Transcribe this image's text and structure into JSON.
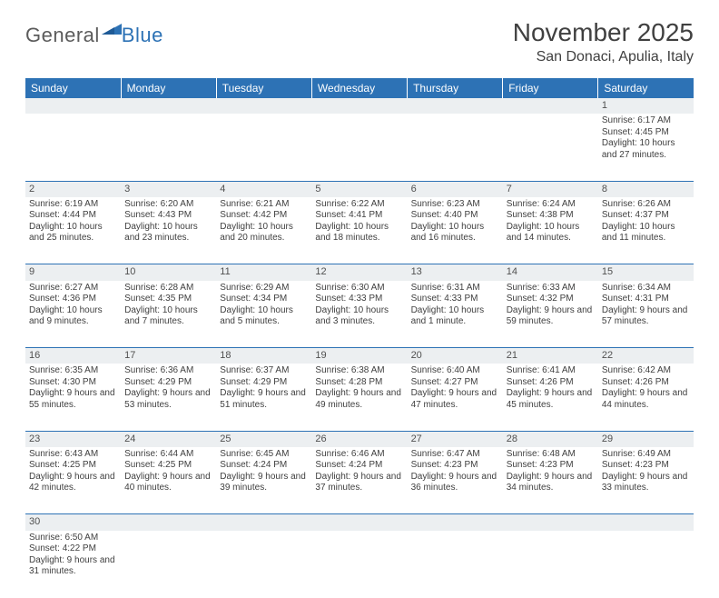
{
  "logo": {
    "general": "General",
    "blue": "Blue"
  },
  "title": "November 2025",
  "location": "San Donaci, Apulia, Italy",
  "colors": {
    "header_bg": "#2d72b5",
    "daynum_bg": "#eceff1",
    "row_border": "#2d72b5",
    "text": "#404040"
  },
  "weekdays": [
    "Sunday",
    "Monday",
    "Tuesday",
    "Wednesday",
    "Thursday",
    "Friday",
    "Saturday"
  ],
  "weeks": [
    [
      null,
      null,
      null,
      null,
      null,
      null,
      {
        "n": "1",
        "sr": "6:17 AM",
        "ss": "4:45 PM",
        "dl": "10 hours and 27 minutes."
      }
    ],
    [
      {
        "n": "2",
        "sr": "6:19 AM",
        "ss": "4:44 PM",
        "dl": "10 hours and 25 minutes."
      },
      {
        "n": "3",
        "sr": "6:20 AM",
        "ss": "4:43 PM",
        "dl": "10 hours and 23 minutes."
      },
      {
        "n": "4",
        "sr": "6:21 AM",
        "ss": "4:42 PM",
        "dl": "10 hours and 20 minutes."
      },
      {
        "n": "5",
        "sr": "6:22 AM",
        "ss": "4:41 PM",
        "dl": "10 hours and 18 minutes."
      },
      {
        "n": "6",
        "sr": "6:23 AM",
        "ss": "4:40 PM",
        "dl": "10 hours and 16 minutes."
      },
      {
        "n": "7",
        "sr": "6:24 AM",
        "ss": "4:38 PM",
        "dl": "10 hours and 14 minutes."
      },
      {
        "n": "8",
        "sr": "6:26 AM",
        "ss": "4:37 PM",
        "dl": "10 hours and 11 minutes."
      }
    ],
    [
      {
        "n": "9",
        "sr": "6:27 AM",
        "ss": "4:36 PM",
        "dl": "10 hours and 9 minutes."
      },
      {
        "n": "10",
        "sr": "6:28 AM",
        "ss": "4:35 PM",
        "dl": "10 hours and 7 minutes."
      },
      {
        "n": "11",
        "sr": "6:29 AM",
        "ss": "4:34 PM",
        "dl": "10 hours and 5 minutes."
      },
      {
        "n": "12",
        "sr": "6:30 AM",
        "ss": "4:33 PM",
        "dl": "10 hours and 3 minutes."
      },
      {
        "n": "13",
        "sr": "6:31 AM",
        "ss": "4:33 PM",
        "dl": "10 hours and 1 minute."
      },
      {
        "n": "14",
        "sr": "6:33 AM",
        "ss": "4:32 PM",
        "dl": "9 hours and 59 minutes."
      },
      {
        "n": "15",
        "sr": "6:34 AM",
        "ss": "4:31 PM",
        "dl": "9 hours and 57 minutes."
      }
    ],
    [
      {
        "n": "16",
        "sr": "6:35 AM",
        "ss": "4:30 PM",
        "dl": "9 hours and 55 minutes."
      },
      {
        "n": "17",
        "sr": "6:36 AM",
        "ss": "4:29 PM",
        "dl": "9 hours and 53 minutes."
      },
      {
        "n": "18",
        "sr": "6:37 AM",
        "ss": "4:29 PM",
        "dl": "9 hours and 51 minutes."
      },
      {
        "n": "19",
        "sr": "6:38 AM",
        "ss": "4:28 PM",
        "dl": "9 hours and 49 minutes."
      },
      {
        "n": "20",
        "sr": "6:40 AM",
        "ss": "4:27 PM",
        "dl": "9 hours and 47 minutes."
      },
      {
        "n": "21",
        "sr": "6:41 AM",
        "ss": "4:26 PM",
        "dl": "9 hours and 45 minutes."
      },
      {
        "n": "22",
        "sr": "6:42 AM",
        "ss": "4:26 PM",
        "dl": "9 hours and 44 minutes."
      }
    ],
    [
      {
        "n": "23",
        "sr": "6:43 AM",
        "ss": "4:25 PM",
        "dl": "9 hours and 42 minutes."
      },
      {
        "n": "24",
        "sr": "6:44 AM",
        "ss": "4:25 PM",
        "dl": "9 hours and 40 minutes."
      },
      {
        "n": "25",
        "sr": "6:45 AM",
        "ss": "4:24 PM",
        "dl": "9 hours and 39 minutes."
      },
      {
        "n": "26",
        "sr": "6:46 AM",
        "ss": "4:24 PM",
        "dl": "9 hours and 37 minutes."
      },
      {
        "n": "27",
        "sr": "6:47 AM",
        "ss": "4:23 PM",
        "dl": "9 hours and 36 minutes."
      },
      {
        "n": "28",
        "sr": "6:48 AM",
        "ss": "4:23 PM",
        "dl": "9 hours and 34 minutes."
      },
      {
        "n": "29",
        "sr": "6:49 AM",
        "ss": "4:23 PM",
        "dl": "9 hours and 33 minutes."
      }
    ],
    [
      {
        "n": "30",
        "sr": "6:50 AM",
        "ss": "4:22 PM",
        "dl": "9 hours and 31 minutes."
      },
      null,
      null,
      null,
      null,
      null,
      null
    ]
  ],
  "labels": {
    "sunrise": "Sunrise:",
    "sunset": "Sunset:",
    "daylight": "Daylight:"
  }
}
